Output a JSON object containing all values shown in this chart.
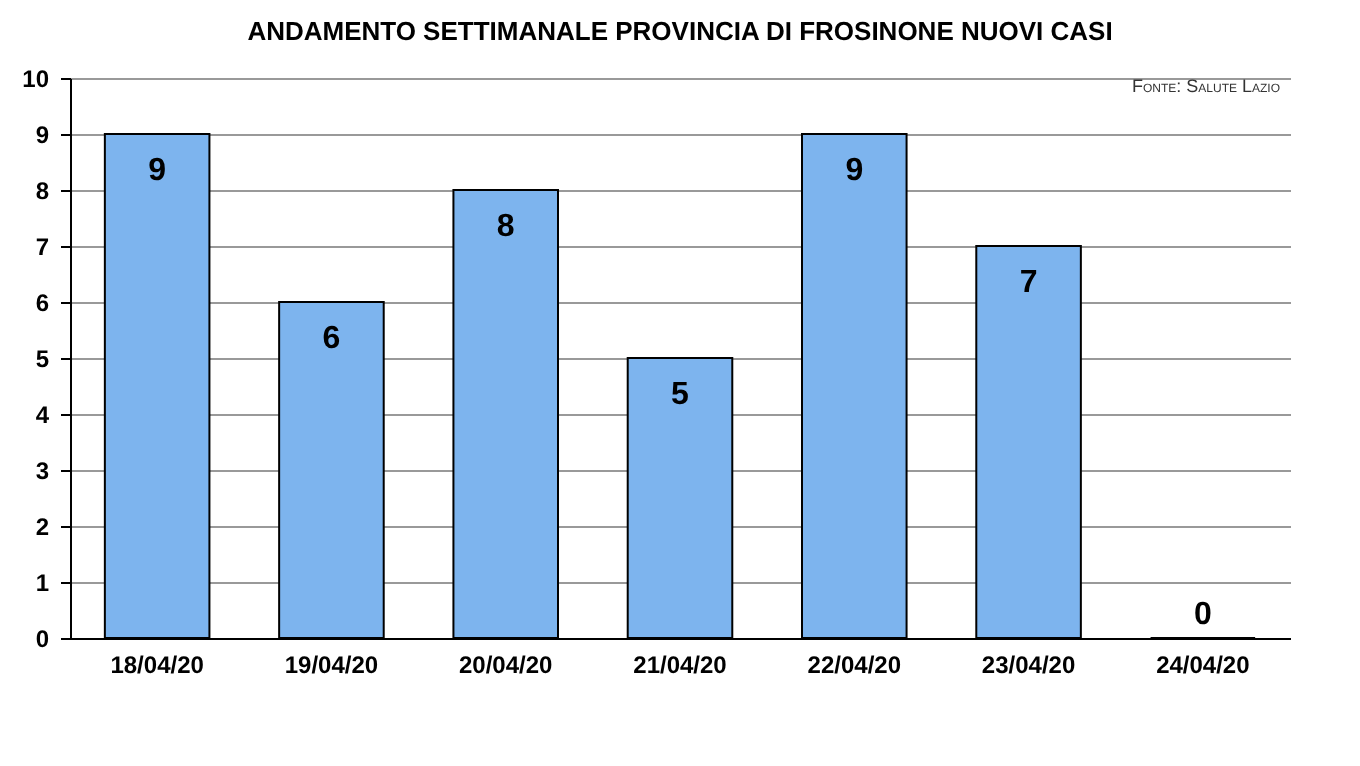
{
  "chart_data": {
    "type": "bar",
    "title": "ANDAMENTO SETTIMANALE PROVINCIA DI FROSINONE NUOVI CASI",
    "annotations": [
      "Fonte: Salute Lazio"
    ],
    "categories": [
      "18/04/20",
      "19/04/20",
      "20/04/20",
      "21/04/20",
      "22/04/20",
      "23/04/20",
      "24/04/20"
    ],
    "values": [
      9,
      6,
      8,
      5,
      9,
      7,
      0
    ],
    "color": "#7db4ee",
    "ylim": [
      0,
      10
    ],
    "yticks": [
      0,
      1,
      2,
      3,
      4,
      5,
      6,
      7,
      8,
      9,
      10
    ],
    "grid": "y",
    "data_labels": true
  }
}
